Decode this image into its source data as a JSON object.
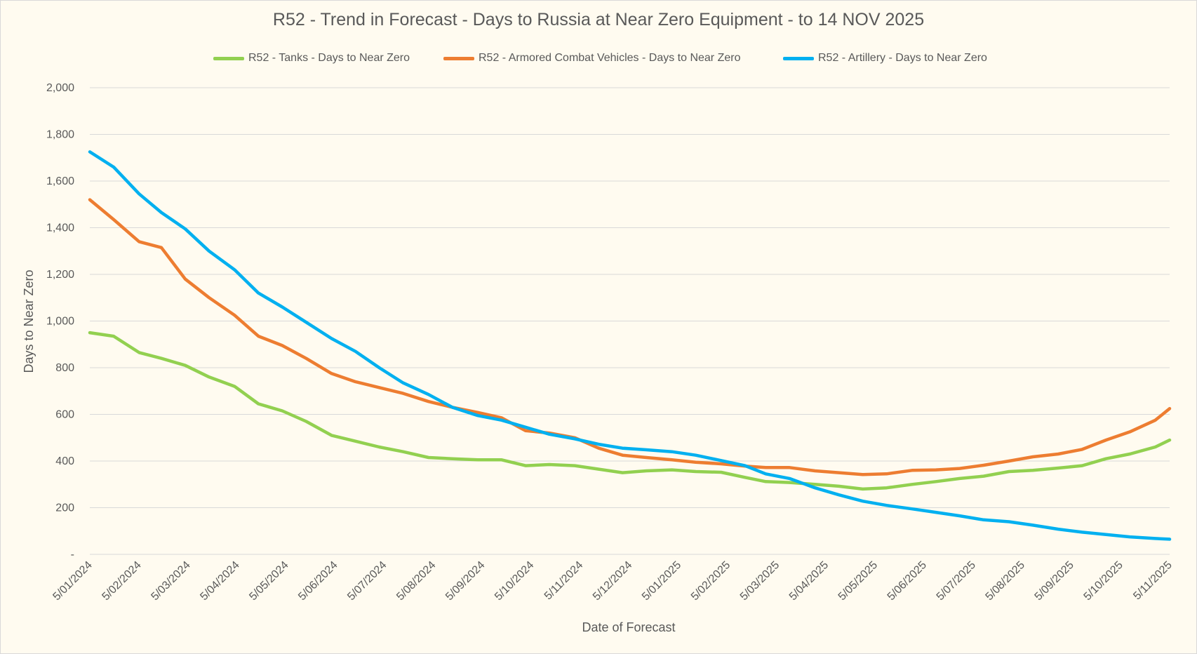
{
  "chart_data": {
    "type": "line",
    "title": "R52 - Trend in Forecast - Days to Russia at Near Zero Equipment - to 14 NOV 2025",
    "xlabel": "Date of Forecast",
    "ylabel": "Days to Near Zero",
    "ylim": [
      0,
      2000
    ],
    "yticks": [
      0,
      200,
      400,
      600,
      800,
      1000,
      1200,
      1400,
      1600,
      1800,
      2000
    ],
    "ytick_labels": [
      "-",
      "200",
      "400",
      "600",
      "800",
      "1,000",
      "1,200",
      "1,400",
      "1,600",
      "1,800",
      "2,000"
    ],
    "x_tick_labels": [
      "5/01/2024",
      "5/02/2024",
      "5/03/2024",
      "5/04/2024",
      "5/05/2024",
      "5/06/2024",
      "5/07/2024",
      "5/08/2024",
      "5/09/2024",
      "5/10/2024",
      "5/11/2024",
      "5/12/2024",
      "5/01/2025",
      "5/02/2025",
      "5/03/2025",
      "5/04/2025",
      "5/05/2025",
      "5/06/2025",
      "5/07/2025",
      "5/08/2025",
      "5/09/2025",
      "5/10/2025",
      "5/11/2025"
    ],
    "grid": true,
    "legend_position": "top",
    "series": [
      {
        "name": "R52 - Tanks - Days to Near Zero",
        "color": "#92d050",
        "points": [
          [
            "2024-01-05",
            950
          ],
          [
            "2024-01-20",
            935
          ],
          [
            "2024-02-05",
            865
          ],
          [
            "2024-02-19",
            840
          ],
          [
            "2024-03-05",
            810
          ],
          [
            "2024-03-20",
            760
          ],
          [
            "2024-04-05",
            720
          ],
          [
            "2024-04-20",
            645
          ],
          [
            "2024-05-05",
            615
          ],
          [
            "2024-05-20",
            570
          ],
          [
            "2024-06-05",
            510
          ],
          [
            "2024-06-20",
            485
          ],
          [
            "2024-07-05",
            460
          ],
          [
            "2024-07-20",
            440
          ],
          [
            "2024-08-05",
            415
          ],
          [
            "2024-08-20",
            410
          ],
          [
            "2024-09-05",
            405
          ],
          [
            "2024-09-20",
            405
          ],
          [
            "2024-10-05",
            380
          ],
          [
            "2024-10-20",
            385
          ],
          [
            "2024-11-05",
            380
          ],
          [
            "2024-11-20",
            365
          ],
          [
            "2024-12-05",
            350
          ],
          [
            "2024-12-20",
            358
          ],
          [
            "2025-01-05",
            362
          ],
          [
            "2025-01-20",
            355
          ],
          [
            "2025-02-05",
            352
          ],
          [
            "2025-02-20",
            330
          ],
          [
            "2025-03-05",
            312
          ],
          [
            "2025-03-20",
            308
          ],
          [
            "2025-04-05",
            300
          ],
          [
            "2025-04-20",
            292
          ],
          [
            "2025-05-05",
            280
          ],
          [
            "2025-05-20",
            285
          ],
          [
            "2025-06-05",
            300
          ],
          [
            "2025-06-20",
            312
          ],
          [
            "2025-07-05",
            325
          ],
          [
            "2025-07-20",
            335
          ],
          [
            "2025-08-05",
            355
          ],
          [
            "2025-08-20",
            360
          ],
          [
            "2025-09-05",
            370
          ],
          [
            "2025-09-20",
            380
          ],
          [
            "2025-10-05",
            410
          ],
          [
            "2025-10-20",
            430
          ],
          [
            "2025-11-05",
            460
          ],
          [
            "2025-11-14",
            490
          ]
        ]
      },
      {
        "name": "R52 - Armored Combat Vehicles - Days to Near Zero",
        "color": "#ed7d31",
        "points": [
          [
            "2024-01-05",
            1520
          ],
          [
            "2024-01-20",
            1435
          ],
          [
            "2024-02-05",
            1340
          ],
          [
            "2024-02-19",
            1315
          ],
          [
            "2024-03-05",
            1180
          ],
          [
            "2024-03-20",
            1100
          ],
          [
            "2024-04-05",
            1025
          ],
          [
            "2024-04-20",
            935
          ],
          [
            "2024-05-05",
            895
          ],
          [
            "2024-05-20",
            840
          ],
          [
            "2024-06-05",
            775
          ],
          [
            "2024-06-20",
            740
          ],
          [
            "2024-07-05",
            715
          ],
          [
            "2024-07-20",
            690
          ],
          [
            "2024-08-05",
            655
          ],
          [
            "2024-08-20",
            630
          ],
          [
            "2024-09-05",
            608
          ],
          [
            "2024-09-20",
            585
          ],
          [
            "2024-10-05",
            530
          ],
          [
            "2024-10-20",
            520
          ],
          [
            "2024-11-05",
            500
          ],
          [
            "2024-11-20",
            455
          ],
          [
            "2024-12-05",
            425
          ],
          [
            "2024-12-20",
            415
          ],
          [
            "2025-01-05",
            405
          ],
          [
            "2025-01-20",
            395
          ],
          [
            "2025-02-05",
            388
          ],
          [
            "2025-02-20",
            378
          ],
          [
            "2025-03-05",
            372
          ],
          [
            "2025-03-20",
            372
          ],
          [
            "2025-04-05",
            358
          ],
          [
            "2025-04-20",
            350
          ],
          [
            "2025-05-05",
            342
          ],
          [
            "2025-05-20",
            345
          ],
          [
            "2025-06-05",
            360
          ],
          [
            "2025-06-20",
            362
          ],
          [
            "2025-07-05",
            368
          ],
          [
            "2025-07-20",
            382
          ],
          [
            "2025-08-05",
            400
          ],
          [
            "2025-08-20",
            418
          ],
          [
            "2025-09-05",
            430
          ],
          [
            "2025-09-20",
            450
          ],
          [
            "2025-10-05",
            490
          ],
          [
            "2025-10-20",
            525
          ],
          [
            "2025-11-05",
            575
          ],
          [
            "2025-11-14",
            625
          ]
        ]
      },
      {
        "name": "R52 - Artillery - Days to Near Zero",
        "color": "#00b0f0",
        "points": [
          [
            "2024-01-05",
            1725
          ],
          [
            "2024-01-20",
            1660
          ],
          [
            "2024-02-05",
            1545
          ],
          [
            "2024-02-19",
            1465
          ],
          [
            "2024-03-05",
            1395
          ],
          [
            "2024-03-20",
            1300
          ],
          [
            "2024-04-05",
            1220
          ],
          [
            "2024-04-20",
            1120
          ],
          [
            "2024-05-05",
            1060
          ],
          [
            "2024-05-20",
            995
          ],
          [
            "2024-06-05",
            925
          ],
          [
            "2024-06-20",
            870
          ],
          [
            "2024-07-05",
            800
          ],
          [
            "2024-07-20",
            735
          ],
          [
            "2024-08-05",
            685
          ],
          [
            "2024-08-20",
            630
          ],
          [
            "2024-09-05",
            595
          ],
          [
            "2024-09-20",
            575
          ],
          [
            "2024-10-05",
            545
          ],
          [
            "2024-10-20",
            515
          ],
          [
            "2024-11-05",
            495
          ],
          [
            "2024-11-20",
            472
          ],
          [
            "2024-12-05",
            455
          ],
          [
            "2024-12-20",
            448
          ],
          [
            "2025-01-05",
            440
          ],
          [
            "2025-01-20",
            425
          ],
          [
            "2025-02-05",
            402
          ],
          [
            "2025-02-20",
            380
          ],
          [
            "2025-03-05",
            345
          ],
          [
            "2025-03-20",
            325
          ],
          [
            "2025-04-05",
            285
          ],
          [
            "2025-04-20",
            255
          ],
          [
            "2025-05-05",
            228
          ],
          [
            "2025-05-20",
            210
          ],
          [
            "2025-06-05",
            195
          ],
          [
            "2025-06-20",
            180
          ],
          [
            "2025-07-05",
            165
          ],
          [
            "2025-07-20",
            148
          ],
          [
            "2025-08-05",
            140
          ],
          [
            "2025-08-20",
            125
          ],
          [
            "2025-09-05",
            108
          ],
          [
            "2025-09-20",
            95
          ],
          [
            "2025-10-05",
            85
          ],
          [
            "2025-10-20",
            75
          ],
          [
            "2025-11-05",
            68
          ],
          [
            "2025-11-14",
            65
          ]
        ]
      }
    ]
  }
}
